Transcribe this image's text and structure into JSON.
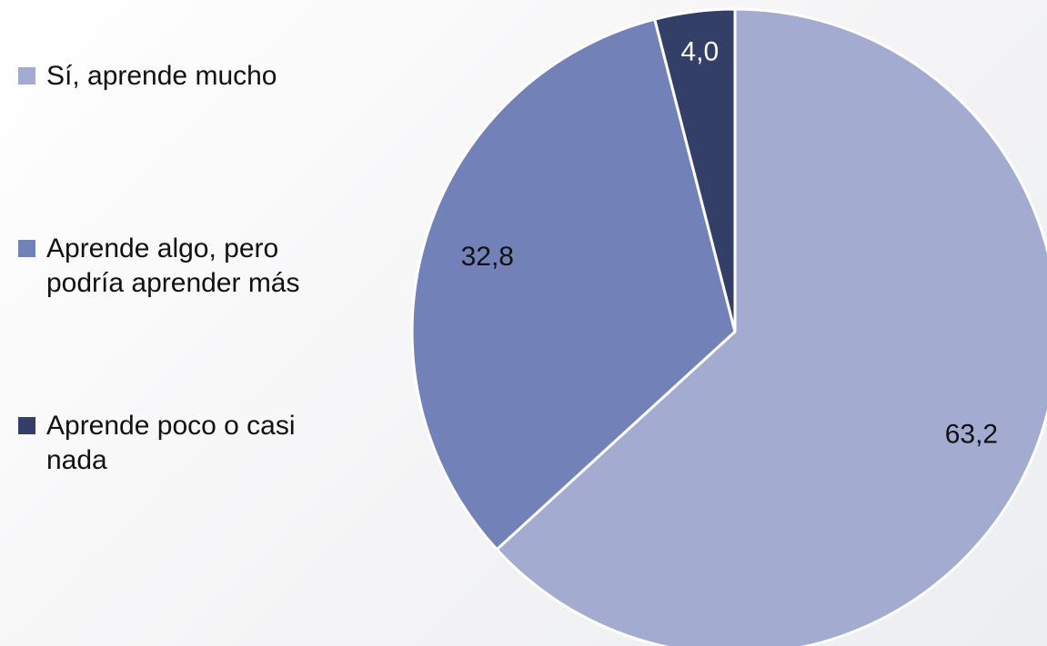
{
  "chart_data": {
    "type": "pie",
    "categories": [
      "Sí, aprende mucho",
      "Aprende algo, pero podría aprender más",
      "Aprende poco o casi nada"
    ],
    "values": [
      63.2,
      32.8,
      4.0
    ],
    "value_labels": [
      "63,2",
      "32,8",
      "4,0"
    ],
    "colors": [
      "#a3acd0",
      "#7282b8",
      "#343f68"
    ],
    "legend": "left"
  }
}
